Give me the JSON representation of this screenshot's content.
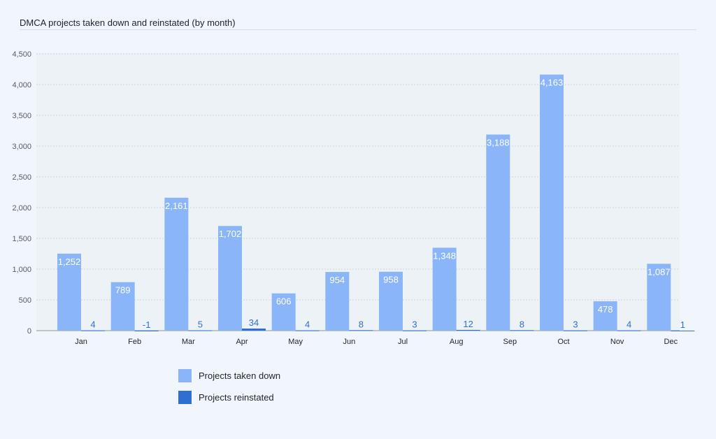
{
  "chart_data": {
    "type": "bar",
    "title": "DMCA projects taken down and reinstated (by month)",
    "categories": [
      "Jan",
      "Feb",
      "Mar",
      "Apr",
      "May",
      "Jun",
      "Jul",
      "Aug",
      "Sep",
      "Oct",
      "Nov",
      "Dec"
    ],
    "series": [
      {
        "name": "Projects taken down",
        "color": "#8ab6f9",
        "values": [
          1252,
          789,
          2161,
          1702,
          606,
          954,
          958,
          1348,
          3188,
          4163,
          478,
          1087
        ],
        "labels": [
          "1,252",
          "789",
          "2,161",
          "1,702",
          "606",
          "954",
          "958",
          "1,348",
          "3,188",
          "4,163",
          "478",
          "1,087"
        ]
      },
      {
        "name": "Projects reinstated",
        "color": "#2f6fd0",
        "values": [
          4,
          -1,
          5,
          34,
          4,
          8,
          3,
          12,
          8,
          3,
          4,
          1
        ],
        "labels": [
          "4",
          "-1",
          "5",
          "34",
          "4",
          "8",
          "3",
          "12",
          "8",
          "3",
          "4",
          "1"
        ]
      }
    ],
    "ylim": [
      0,
      4500
    ],
    "yticks": [
      0,
      500,
      1000,
      1500,
      2000,
      2500,
      3000,
      3500,
      4000,
      4500
    ],
    "ytick_labels": [
      "0",
      "500",
      "1,000",
      "1,500",
      "2,000",
      "2,500",
      "3,000",
      "3,500",
      "4,000",
      "4,500"
    ],
    "grid": true,
    "legend_position": "bottom-left"
  }
}
